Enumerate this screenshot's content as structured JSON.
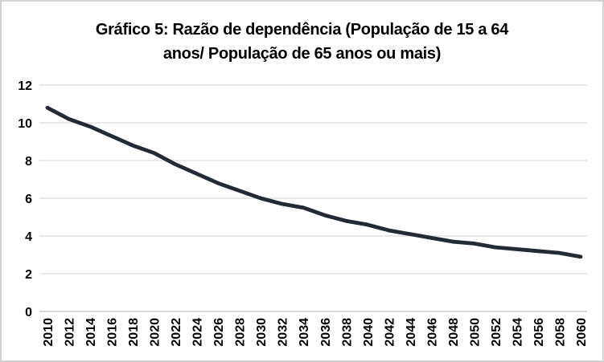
{
  "title": {
    "line1": "Gráfico 5: Razão de dependência (População de 15 a 64",
    "line2": "anos/ População de 65 anos ou mais)"
  },
  "chart_data": {
    "type": "line",
    "title": "Gráfico 5: Razão de dependência (População de 15 a 64 anos/ População de 65 anos ou mais)",
    "categories": [
      "2010",
      "2012",
      "2014",
      "2016",
      "2018",
      "2020",
      "2022",
      "2024",
      "2026",
      "2028",
      "2030",
      "2032",
      "2034",
      "2036",
      "2038",
      "2040",
      "2042",
      "2044",
      "2046",
      "2048",
      "2050",
      "2052",
      "2054",
      "2056",
      "2058",
      "2060"
    ],
    "values": [
      10.8,
      10.2,
      9.8,
      9.3,
      8.8,
      8.4,
      7.8,
      7.3,
      6.8,
      6.4,
      6.0,
      5.7,
      5.5,
      5.1,
      4.8,
      4.6,
      4.3,
      4.1,
      3.9,
      3.7,
      3.6,
      3.4,
      3.3,
      3.2,
      3.1,
      2.9
    ],
    "xlabel": "",
    "ylabel": "",
    "ylim": [
      0,
      12
    ],
    "yticks": [
      0,
      2,
      4,
      6,
      8,
      10,
      12
    ],
    "grid": true,
    "legend": false,
    "line_color": "#222B35",
    "gridline_color": "#D9D9D9",
    "axis_line_color": "#C2C2C2",
    "label_color": "#000000"
  }
}
